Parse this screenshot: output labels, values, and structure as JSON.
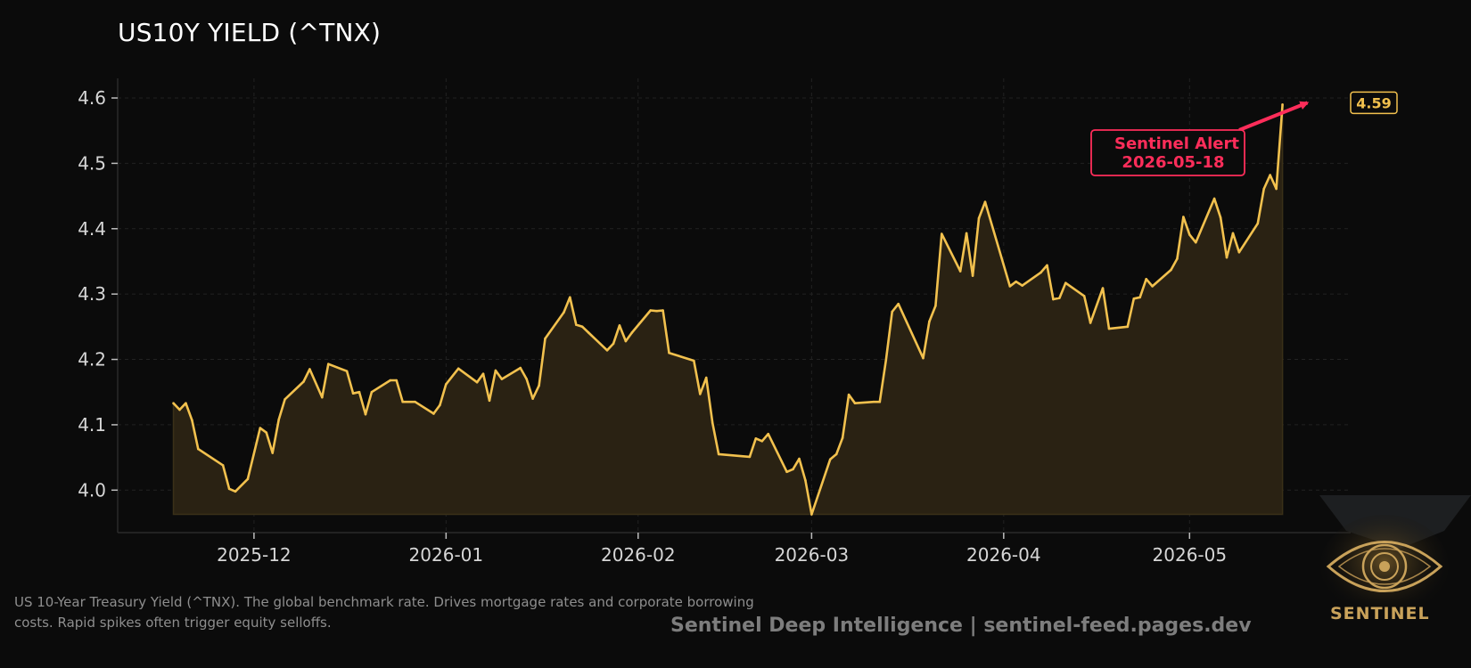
{
  "title": "US10Y YIELD (^TNX)",
  "caption": "US 10-Year Treasury Yield (^TNX). The global benchmark rate. Drives mortgage rates and corporate borrowing costs. Rapid spikes often trigger equity selloffs.",
  "footer": "Sentinel Deep Intelligence  |  sentinel-feed.pages.dev",
  "logo_text": "SENTINEL",
  "colors": {
    "background": "#0b0b0b",
    "line": "#f2c14e",
    "fill": "#2a2213",
    "alert": "#ff2d5a",
    "grid": "#222222",
    "text": "#d6d6d6"
  },
  "chart_data": {
    "type": "area",
    "title": "US10Y YIELD (^TNX)",
    "xlabel": "",
    "ylabel": "",
    "ylim": [
      3.935,
      4.63
    ],
    "xlim": [
      "2025-11-09",
      "2026-05-27"
    ],
    "grid": true,
    "y_ticks": [
      "4.0",
      "4.1",
      "4.2",
      "4.3",
      "4.4",
      "4.5",
      "4.6"
    ],
    "x_ticks": [
      "2025-12",
      "2026-01",
      "2026-02",
      "2026-03",
      "2026-04",
      "2026-05"
    ],
    "last_value_label": "4.59",
    "annotation": {
      "text_line1": "Sentinel Alert",
      "text_line2": "2026-05-18",
      "x": "2026-05-18",
      "y": 4.59
    },
    "series": [
      {
        "values": [
          [
            "2025-11-18",
            4.133
          ],
          [
            "2025-11-19",
            4.123
          ],
          [
            "2025-11-20",
            4.133
          ],
          [
            "2025-11-21",
            4.107
          ],
          [
            "2025-11-22",
            4.063
          ],
          [
            "2025-11-26",
            4.038
          ],
          [
            "2025-11-27",
            4.002
          ],
          [
            "2025-11-28",
            3.998
          ],
          [
            "2025-11-30",
            4.017
          ],
          [
            "2025-12-02",
            4.095
          ],
          [
            "2025-12-03",
            4.088
          ],
          [
            "2025-12-04",
            4.057
          ],
          [
            "2025-12-05",
            4.108
          ],
          [
            "2025-12-06",
            4.139
          ],
          [
            "2025-12-09",
            4.166
          ],
          [
            "2025-12-10",
            4.185
          ],
          [
            "2025-12-12",
            4.142
          ],
          [
            "2025-12-13",
            4.193
          ],
          [
            "2025-12-16",
            4.182
          ],
          [
            "2025-12-17",
            4.148
          ],
          [
            "2025-12-18",
            4.15
          ],
          [
            "2025-12-19",
            4.116
          ],
          [
            "2025-12-20",
            4.15
          ],
          [
            "2025-12-23",
            4.168
          ],
          [
            "2025-12-24",
            4.168
          ],
          [
            "2025-12-25",
            4.135
          ],
          [
            "2025-12-27",
            4.135
          ],
          [
            "2025-12-30",
            4.117
          ],
          [
            "2025-12-31",
            4.13
          ],
          [
            "2026-01-01",
            4.162
          ],
          [
            "2026-01-03",
            4.186
          ],
          [
            "2026-01-06",
            4.165
          ],
          [
            "2026-01-07",
            4.178
          ],
          [
            "2026-01-08",
            4.137
          ],
          [
            "2026-01-09",
            4.183
          ],
          [
            "2026-01-10",
            4.17
          ],
          [
            "2026-01-13",
            4.187
          ],
          [
            "2026-01-14",
            4.17
          ],
          [
            "2026-01-15",
            4.14
          ],
          [
            "2026-01-16",
            4.16
          ],
          [
            "2026-01-17",
            4.232
          ],
          [
            "2026-01-20",
            4.272
          ],
          [
            "2026-01-21",
            4.295
          ],
          [
            "2026-01-22",
            4.253
          ],
          [
            "2026-01-23",
            4.25
          ],
          [
            "2026-01-24",
            4.241
          ],
          [
            "2026-01-27",
            4.214
          ],
          [
            "2026-01-28",
            4.224
          ],
          [
            "2026-01-29",
            4.252
          ],
          [
            "2026-01-30",
            4.228
          ],
          [
            "2026-01-31",
            4.241
          ],
          [
            "2026-02-03",
            4.275
          ],
          [
            "2026-02-04",
            4.274
          ],
          [
            "2026-02-05",
            4.275
          ],
          [
            "2026-02-06",
            4.21
          ],
          [
            "2026-02-10",
            4.198
          ],
          [
            "2026-02-11",
            4.147
          ],
          [
            "2026-02-12",
            4.172
          ],
          [
            "2026-02-13",
            4.103
          ],
          [
            "2026-02-14",
            4.055
          ],
          [
            "2026-02-19",
            4.051
          ],
          [
            "2026-02-20",
            4.079
          ],
          [
            "2026-02-21",
            4.075
          ],
          [
            "2026-02-22",
            4.086
          ],
          [
            "2026-02-25",
            4.028
          ],
          [
            "2026-02-26",
            4.032
          ],
          [
            "2026-02-27",
            4.048
          ],
          [
            "2026-02-28",
            4.015
          ],
          [
            "2026-03-01",
            3.963
          ],
          [
            "2026-03-04",
            4.047
          ],
          [
            "2026-03-05",
            4.055
          ],
          [
            "2026-03-06",
            4.08
          ],
          [
            "2026-03-07",
            4.146
          ],
          [
            "2026-03-08",
            4.133
          ],
          [
            "2026-03-11",
            4.135
          ],
          [
            "2026-03-12",
            4.135
          ],
          [
            "2026-03-13",
            4.199
          ],
          [
            "2026-03-14",
            4.273
          ],
          [
            "2026-03-15",
            4.285
          ],
          [
            "2026-03-19",
            4.202
          ],
          [
            "2026-03-20",
            4.258
          ],
          [
            "2026-03-21",
            4.282
          ],
          [
            "2026-03-22",
            4.392
          ],
          [
            "2026-03-25",
            4.335
          ],
          [
            "2026-03-26",
            4.393
          ],
          [
            "2026-03-27",
            4.328
          ],
          [
            "2026-03-28",
            4.416
          ],
          [
            "2026-03-29",
            4.441
          ],
          [
            "2026-04-02",
            4.312
          ],
          [
            "2026-04-03",
            4.319
          ],
          [
            "2026-04-04",
            4.313
          ],
          [
            "2026-04-07",
            4.333
          ],
          [
            "2026-04-08",
            4.344
          ],
          [
            "2026-04-09",
            4.292
          ],
          [
            "2026-04-10",
            4.294
          ],
          [
            "2026-04-11",
            4.317
          ],
          [
            "2026-04-14",
            4.297
          ],
          [
            "2026-04-15",
            4.256
          ],
          [
            "2026-04-17",
            4.309
          ],
          [
            "2026-04-18",
            4.247
          ],
          [
            "2026-04-21",
            4.25
          ],
          [
            "2026-04-22",
            4.293
          ],
          [
            "2026-04-23",
            4.295
          ],
          [
            "2026-04-24",
            4.323
          ],
          [
            "2026-04-25",
            4.312
          ],
          [
            "2026-04-28",
            4.337
          ],
          [
            "2026-04-29",
            4.354
          ],
          [
            "2026-04-30",
            4.418
          ],
          [
            "2026-05-01",
            4.391
          ],
          [
            "2026-05-02",
            4.379
          ],
          [
            "2026-05-05",
            4.446
          ],
          [
            "2026-05-06",
            4.417
          ],
          [
            "2026-05-07",
            4.356
          ],
          [
            "2026-05-08",
            4.393
          ],
          [
            "2026-05-09",
            4.364
          ],
          [
            "2026-05-12",
            4.408
          ],
          [
            "2026-05-13",
            4.461
          ],
          [
            "2026-05-14",
            4.482
          ],
          [
            "2026-05-15",
            4.461
          ],
          [
            "2026-05-16",
            4.59
          ]
        ]
      }
    ]
  }
}
